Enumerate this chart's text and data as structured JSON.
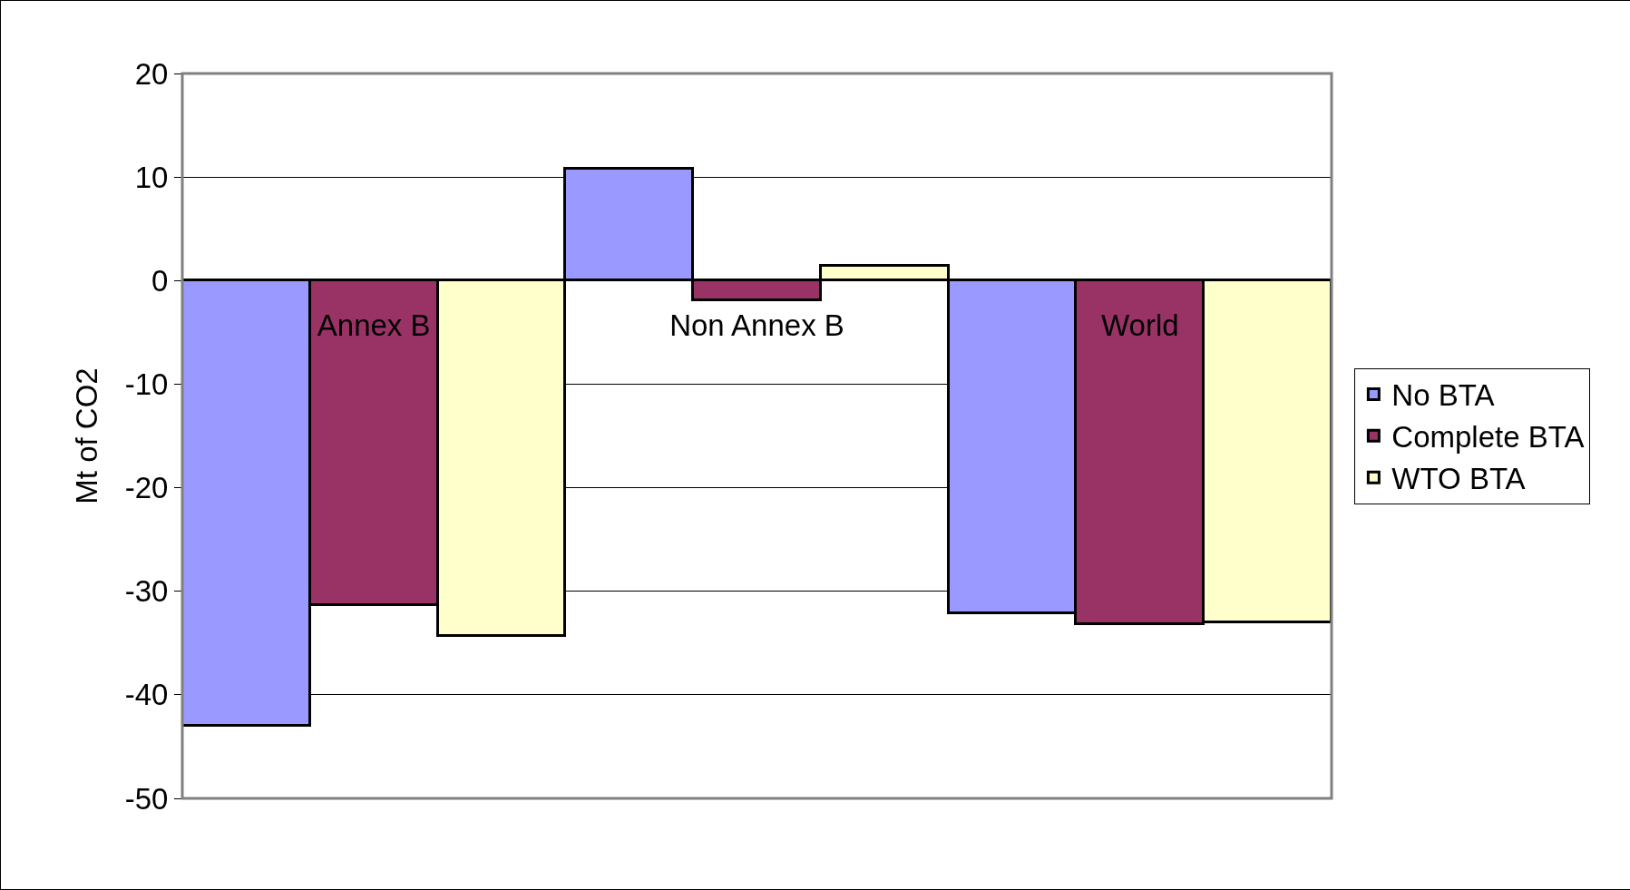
{
  "chart_data": {
    "type": "bar",
    "ylabel": "Mt of CO2",
    "categories": [
      "Annex B",
      "Non Annex B",
      "World"
    ],
    "series": [
      {
        "name": "No BTA",
        "color": "#9999ff",
        "values": [
          -43.0,
          10.8,
          -32.1
        ]
      },
      {
        "name": "Complete BTA",
        "color": "#993366",
        "values": [
          -31.3,
          -1.9,
          -33.2
        ]
      },
      {
        "name": "WTO BTA",
        "color": "#ffffcc",
        "values": [
          -34.3,
          1.4,
          -33.0
        ]
      }
    ],
    "ylim": [
      -50,
      20
    ],
    "yticks": [
      -50,
      -40,
      -30,
      -20,
      -10,
      0,
      10,
      20
    ],
    "grid": "y",
    "legend": "right"
  }
}
